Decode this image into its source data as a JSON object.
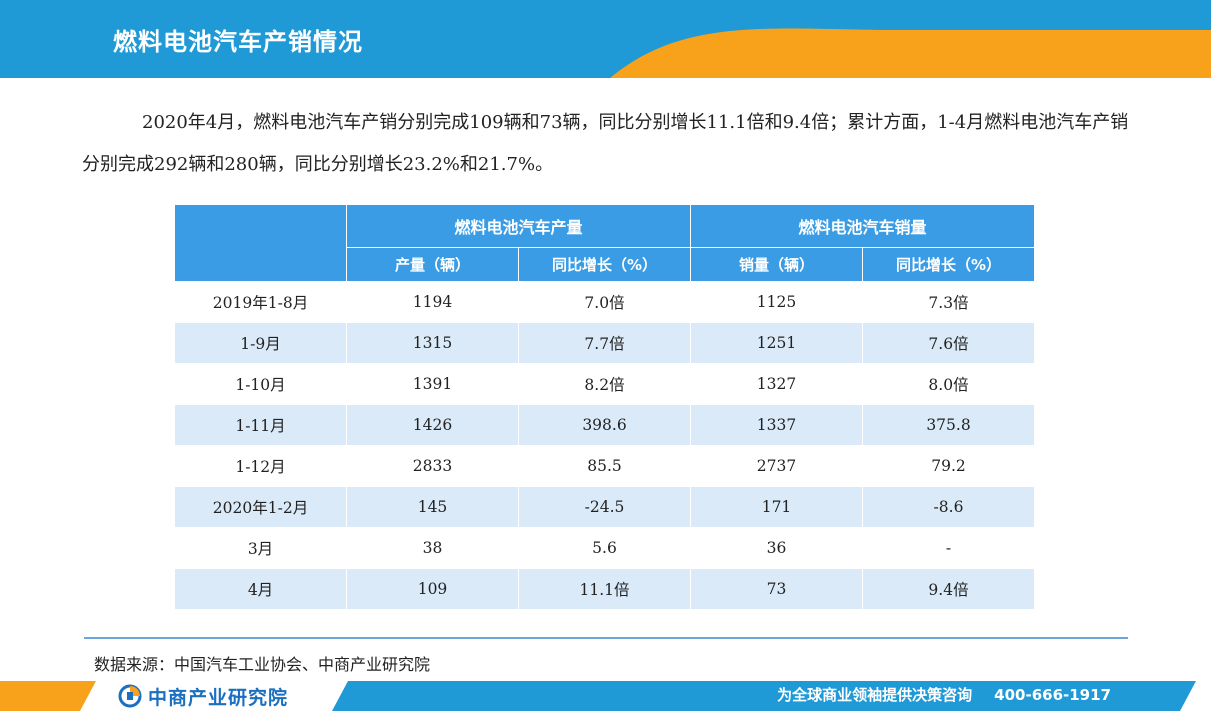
{
  "header": {
    "title": "燃料电池汽车产销情况"
  },
  "intro": {
    "paragraph": "2020年4月，燃料电池汽车产销分别完成109辆和73辆，同比分别增长11.1倍和9.4倍；累计方面，1-4月燃料电池汽车产销分别完成292辆和280辆，同比分别增长23.2%和21.7%。"
  },
  "table": {
    "group_headers": [
      "燃料电池汽车产量",
      "燃料电池汽车销量"
    ],
    "sub_headers": [
      "产量（辆）",
      "同比增长（%）",
      "销量（辆）",
      "同比增长（%）"
    ],
    "rows": [
      [
        "2019年1-8月",
        "1194",
        "7.0倍",
        "1125",
        "7.3倍"
      ],
      [
        "1-9月",
        "1315",
        "7.7倍",
        "1251",
        "7.6倍"
      ],
      [
        "1-10月",
        "1391",
        "8.2倍",
        "1327",
        "8.0倍"
      ],
      [
        "1-11月",
        "1426",
        "398.6",
        "1337",
        "375.8"
      ],
      [
        "1-12月",
        "2833",
        "85.5",
        "2737",
        "79.2"
      ],
      [
        "2020年1-2月",
        "145",
        "-24.5",
        "171",
        "-8.6"
      ],
      [
        "3月",
        "38",
        "5.6",
        "36",
        "-"
      ],
      [
        "4月",
        "109",
        "11.1倍",
        "73",
        "9.4倍"
      ]
    ]
  },
  "source": {
    "text": "数据来源：中国汽车工业协会、中商产业研究院"
  },
  "footer": {
    "logo_text": "中商产业研究院",
    "slogan": "为全球商业领袖提供决策咨询",
    "phone": "400-666-1917"
  },
  "colors": {
    "header_blue": "#1f9ad6",
    "accent_orange": "#f7a21a",
    "table_header": "#3a9ce4",
    "row_stripe": "#dbeaf8"
  }
}
